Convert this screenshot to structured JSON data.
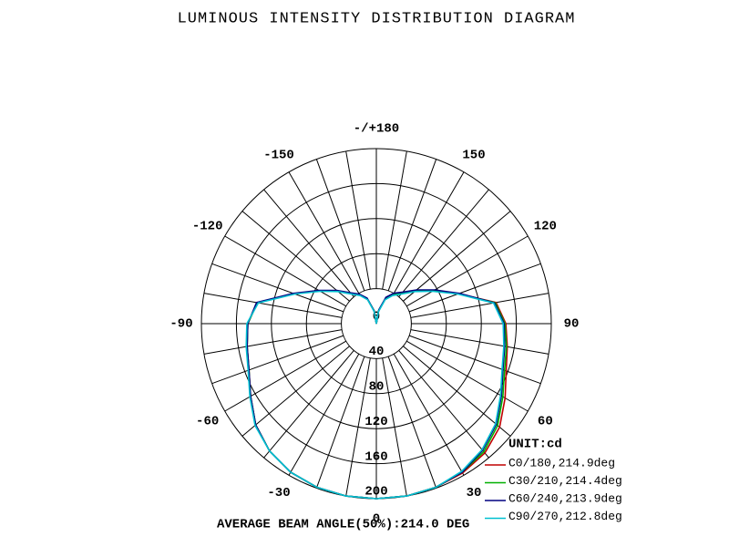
{
  "chart_data": {
    "type": "polar",
    "title": "LUMINOUS INTENSITY DISTRIBUTION DIAGRAM",
    "unit": "UNIT:cd",
    "footer": "AVERAGE BEAM ANGLE(50%):214.0 DEG",
    "x": [
      -180,
      -170,
      -160,
      -150,
      -140,
      -130,
      -120,
      -110,
      -100,
      -90,
      -80,
      -70,
      -60,
      -50,
      -40,
      -30,
      -20,
      -10,
      0,
      10,
      20,
      30,
      40,
      50,
      60,
      70,
      80,
      90,
      100,
      110,
      120,
      130,
      140,
      150,
      160,
      170,
      180
    ],
    "rlim": [
      0,
      200
    ],
    "rticks": [
      0,
      40,
      80,
      120,
      160,
      200
    ],
    "thetaticks": [
      0,
      30,
      60,
      90,
      120,
      150,
      {
        "value": 180,
        "label": "-/+180"
      },
      -150,
      -120,
      -90,
      -60,
      -30
    ],
    "series": [
      {
        "name": "C0/180,214.9deg",
        "color": "#c00000",
        "values": [
          0,
          15,
          30,
          38,
          45,
          58,
          75,
          100,
          138,
          147,
          150,
          155,
          166,
          180,
          190,
          196,
          199,
          200,
          200,
          200,
          199,
          197,
          193,
          184,
          170,
          158,
          152,
          148,
          139,
          100,
          75,
          58,
          45,
          38,
          30,
          15,
          0
        ]
      },
      {
        "name": "C30/210,214.4deg",
        "color": "#00b000",
        "values": [
          0,
          15,
          30,
          38,
          45,
          58,
          75,
          100,
          138,
          147,
          150,
          155,
          166,
          180,
          190,
          196,
          199,
          200,
          200,
          200,
          199,
          196,
          191,
          181,
          167,
          156,
          151,
          147,
          138,
          100,
          75,
          58,
          45,
          38,
          30,
          15,
          0
        ]
      },
      {
        "name": "C60/240,213.9deg",
        "color": "#000080",
        "values": [
          0,
          15,
          31,
          39,
          46,
          59,
          76,
          101,
          139,
          147,
          150,
          155,
          166,
          180,
          190,
          196,
          199,
          200,
          200,
          200,
          199,
          196,
          189,
          179,
          165,
          154,
          149,
          146,
          137,
          101,
          77,
          60,
          47,
          40,
          32,
          16,
          0
        ]
      },
      {
        "name": "C90/270,212.8deg",
        "color": "#00c0d0",
        "values": [
          0,
          14,
          29,
          37,
          44,
          57,
          74,
          99,
          137,
          148,
          151,
          156,
          167,
          181,
          190,
          196,
          199,
          200,
          200,
          200,
          199,
          195,
          188,
          178,
          164,
          153,
          148,
          145,
          136,
          99,
          74,
          57,
          44,
          37,
          29,
          14,
          0
        ]
      }
    ]
  }
}
